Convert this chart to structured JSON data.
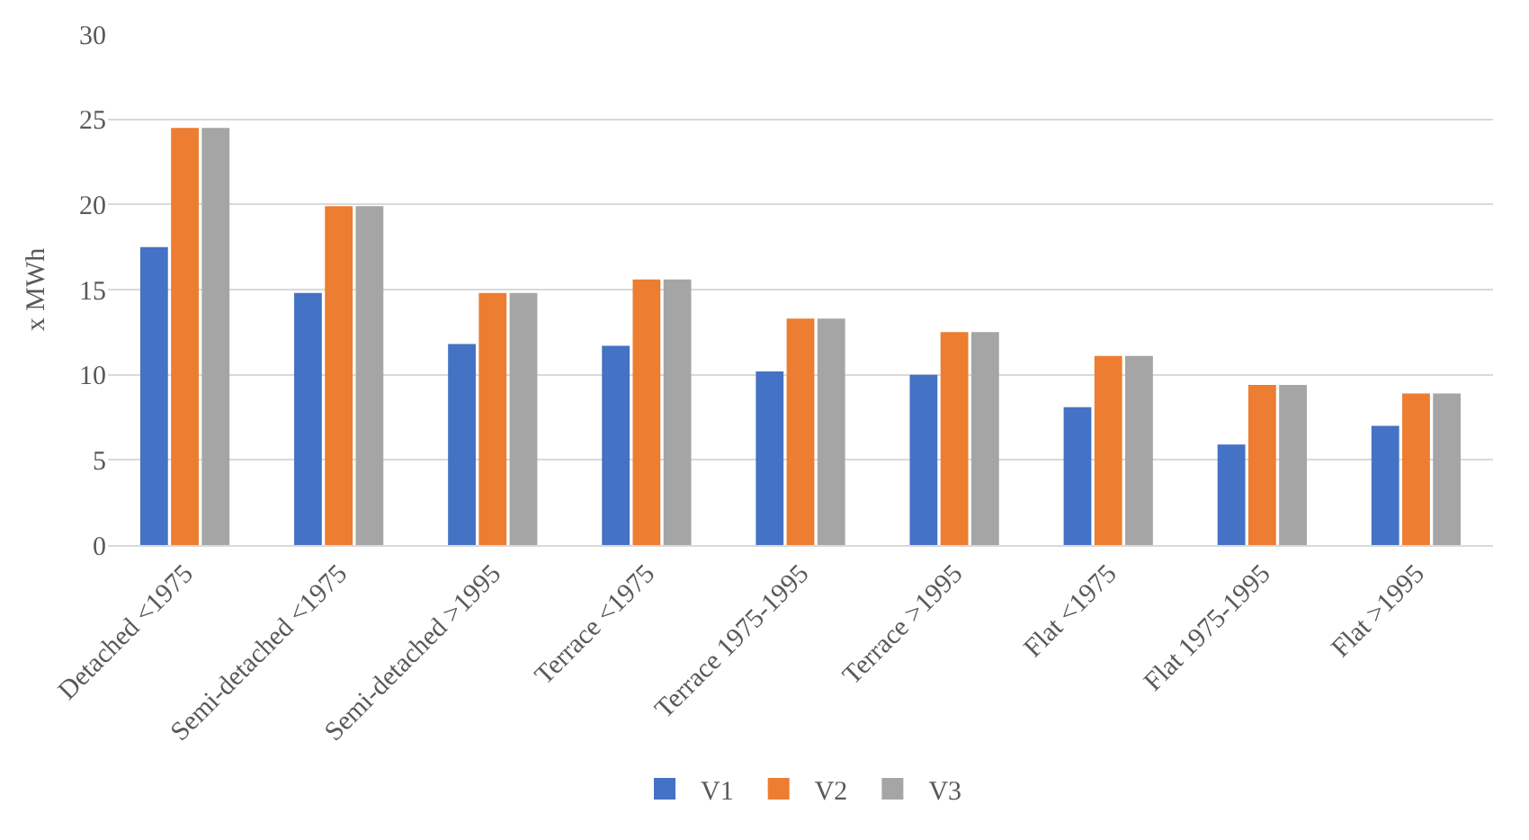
{
  "chart_data": {
    "type": "bar",
    "ylabel": "x MWh",
    "categories": [
      "Detached <1975",
      "Semi-detached <1975",
      "Semi-detached >1995",
      "Terrace <1975",
      "Terrace 1975-1995",
      "Terrace >1995",
      "Flat <1975",
      "Flat 1975-1995",
      "Flat >1995"
    ],
    "series": [
      {
        "name": "V1",
        "color": "#4472c4",
        "values": [
          17.5,
          14.8,
          11.8,
          11.7,
          10.2,
          10.0,
          8.1,
          5.9,
          7.0
        ]
      },
      {
        "name": "V2",
        "color": "#ed7d31",
        "values": [
          24.5,
          19.9,
          14.8,
          15.6,
          13.3,
          12.5,
          11.1,
          9.4,
          8.9
        ]
      },
      {
        "name": "V3",
        "color": "#a5a5a5",
        "values": [
          24.5,
          19.9,
          14.8,
          15.6,
          13.3,
          12.5,
          11.1,
          9.4,
          8.9
        ]
      }
    ],
    "ylim": [
      0,
      30
    ],
    "yticks": [
      0,
      5,
      10,
      15,
      20,
      25,
      30
    ],
    "grid": "y",
    "legend": "bottom"
  }
}
